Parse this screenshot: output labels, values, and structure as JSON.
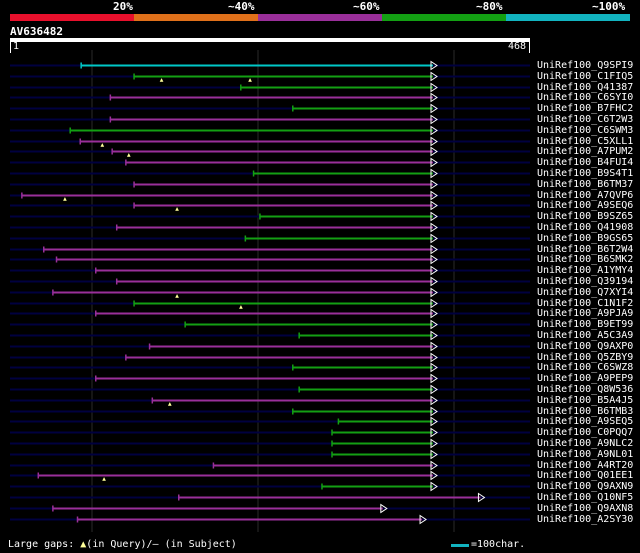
{
  "colors": {
    "bg": "#000000",
    "navy": "#000040",
    "query": "#00c8c8",
    "c20": "#e8102c",
    "c40": "#e0701a",
    "c60": "#9a2f9a",
    "c80": "#13a013",
    "c100": "#12b3c0",
    "arrow_fill": "#ffffff",
    "gap_marker": "#ffff99"
  },
  "header": {
    "percent_labels": [
      "20%",
      "~40%",
      "~60%",
      "~80%",
      "~100%"
    ]
  },
  "query": {
    "id": "AV636482",
    "start_label": "1",
    "end_label": "468",
    "length": 468
  },
  "hits": [
    {
      "label": "UniRef100_Q9SPI9",
      "color": "query",
      "start": 79,
      "end": 468,
      "gaps": [],
      "branches": []
    },
    {
      "label": "UniRef100_C1FIQ5",
      "color": "c80",
      "start": 137,
      "end": 468,
      "gaps": [],
      "branches": [
        [
          163,
          220
        ],
        [
          260,
          420
        ]
      ]
    },
    {
      "label": "UniRef100_Q41387",
      "color": "c80",
      "start": 254,
      "end": 468,
      "gaps": [],
      "branches": []
    },
    {
      "label": "UniRef100_C6SYI0",
      "color": "c60",
      "start": 111,
      "end": 468,
      "gaps": [],
      "branches": []
    },
    {
      "label": "UniRef100_B7FHC2",
      "color": "c80",
      "start": 311,
      "end": 468,
      "gaps": [],
      "branches": []
    },
    {
      "label": "UniRef100_C6T2W3",
      "color": "c60",
      "start": 111,
      "end": 468,
      "gaps": [],
      "branches": []
    },
    {
      "label": "UniRef100_C6SWM3",
      "color": "c80",
      "start": 67,
      "end": 468,
      "gaps": [],
      "branches": []
    },
    {
      "label": "UniRef100_C5XLL1",
      "color": "c60",
      "start": 78,
      "end": 468,
      "gaps": [],
      "branches": [
        [
          98,
          208
        ]
      ]
    },
    {
      "label": "UniRef100_A7PUM2",
      "color": "c60",
      "start": 113,
      "end": 468,
      "gaps": [],
      "branches": [
        [
          127,
          184
        ]
      ]
    },
    {
      "label": "UniRef100_B4FUI4",
      "color": "c60",
      "start": 128,
      "end": 468,
      "gaps": [],
      "branches": []
    },
    {
      "label": "UniRef100_B9S4T1",
      "color": "c80",
      "start": 268,
      "end": 468,
      "gaps": [],
      "branches": []
    },
    {
      "label": "UniRef100_B6TM37",
      "color": "c60",
      "start": 137,
      "end": 468,
      "gaps": [],
      "branches": []
    },
    {
      "label": "UniRef100_A7QVP6",
      "color": "c60",
      "start": 14,
      "end": 468,
      "gaps": [],
      "branches": [
        [
          57,
          130
        ]
      ]
    },
    {
      "label": "UniRef100_A9SEQ6",
      "color": "c60",
      "start": 137,
      "end": 468,
      "gaps": [],
      "branches": [
        [
          180,
          240
        ]
      ]
    },
    {
      "label": "UniRef100_B9SZ65",
      "color": "c80",
      "start": 275,
      "end": 468,
      "gaps": [],
      "branches": []
    },
    {
      "label": "UniRef100_Q41908",
      "color": "c60",
      "start": 118,
      "end": 468,
      "gaps": [],
      "branches": []
    },
    {
      "label": "UniRef100_B9GS65",
      "color": "c80",
      "start": 259,
      "end": 468,
      "gaps": [],
      "branches": []
    },
    {
      "label": "UniRef100_B6T2W4",
      "color": "c60",
      "start": 38,
      "end": 468,
      "gaps": [],
      "branches": []
    },
    {
      "label": "UniRef100_B6SMK2",
      "color": "c60",
      "start": 52,
      "end": 468,
      "gaps": [],
      "branches": []
    },
    {
      "label": "UniRef100_A1YMY4",
      "color": "c60",
      "start": 95,
      "end": 468,
      "gaps": [],
      "branches": []
    },
    {
      "label": "UniRef100_Q39194",
      "color": "c60",
      "start": 118,
      "end": 468,
      "gaps": [],
      "branches": []
    },
    {
      "label": "UniRef100_Q7XYI4",
      "color": "c60",
      "start": 48,
      "end": 468,
      "gaps": [],
      "branches": [
        [
          180,
          240
        ]
      ]
    },
    {
      "label": "UniRef100_C1N1F2",
      "color": "c80",
      "start": 137,
      "end": 468,
      "gaps": [],
      "branches": [
        [
          250,
          330
        ]
      ]
    },
    {
      "label": "UniRef100_A9PJA9",
      "color": "c60",
      "start": 95,
      "end": 468,
      "gaps": [],
      "branches": []
    },
    {
      "label": "UniRef100_B9ET99",
      "color": "c80",
      "start": 193,
      "end": 468,
      "gaps": [],
      "branches": []
    },
    {
      "label": "UniRef100_A5C3A9",
      "color": "c80",
      "start": 318,
      "end": 468,
      "gaps": [],
      "branches": []
    },
    {
      "label": "UniRef100_Q9AXP0",
      "color": "c60",
      "start": 154,
      "end": 468,
      "gaps": [],
      "branches": []
    },
    {
      "label": "UniRef100_Q5ZBY9",
      "color": "c60",
      "start": 128,
      "end": 468,
      "gaps": [],
      "branches": []
    },
    {
      "label": "UniRef100_C6SWZ8",
      "color": "c80",
      "start": 311,
      "end": 468,
      "gaps": [],
      "branches": []
    },
    {
      "label": "UniRef100_A9PEP9",
      "color": "c60",
      "start": 95,
      "end": 468,
      "gaps": [],
      "branches": []
    },
    {
      "label": "UniRef100_Q8W536",
      "color": "c80",
      "start": 318,
      "end": 468,
      "gaps": [],
      "branches": []
    },
    {
      "label": "UniRef100_B5A4J5",
      "color": "c60",
      "start": 157,
      "end": 468,
      "gaps": [],
      "branches": [
        [
          172,
          245
        ]
      ]
    },
    {
      "label": "UniRef100_B6TMB3",
      "color": "c80",
      "start": 311,
      "end": 468,
      "gaps": [],
      "branches": []
    },
    {
      "label": "UniRef100_A9SEQ5",
      "color": "c80",
      "start": 361,
      "end": 468,
      "gaps": [],
      "branches": []
    },
    {
      "label": "UniRef100_C0PQQ7",
      "color": "c80",
      "start": 354,
      "end": 468,
      "gaps": [],
      "branches": []
    },
    {
      "label": "UniRef100_A9NLC2",
      "color": "c80",
      "start": 354,
      "end": 468,
      "gaps": [],
      "branches": []
    },
    {
      "label": "UniRef100_A9NL01",
      "color": "c80",
      "start": 354,
      "end": 468,
      "gaps": [],
      "branches": []
    },
    {
      "label": "UniRef100_A4RT20",
      "color": "c60",
      "start": 224,
      "end": 468,
      "gaps": [],
      "branches": []
    },
    {
      "label": "UniRef100_Q01EE1",
      "color": "c60",
      "start": 32,
      "end": 468,
      "gaps": [],
      "branches": [
        [
          100,
          240
        ]
      ]
    },
    {
      "label": "UniRef100_Q9AXN9",
      "color": "c80",
      "start": 343,
      "end": 468,
      "gaps": [],
      "branches": []
    },
    {
      "label": "UniRef100_Q10NF5",
      "color": "c60",
      "start": 186,
      "end": 520,
      "gaps": [],
      "branches": []
    },
    {
      "label": "UniRef100_Q9AXN8",
      "color": "c60",
      "start": 48,
      "end": 413,
      "gaps": [],
      "branches": []
    },
    {
      "label": "UniRef100_A2SY30",
      "color": "c60",
      "start": 75,
      "end": 456,
      "gaps": [],
      "branches": []
    }
  ],
  "legend": {
    "gaps_prefix": "Large gaps:",
    "gaps_query": "(in Query)/",
    "gaps_subject": "– (in Subject)",
    "scale_text": "=100char."
  }
}
